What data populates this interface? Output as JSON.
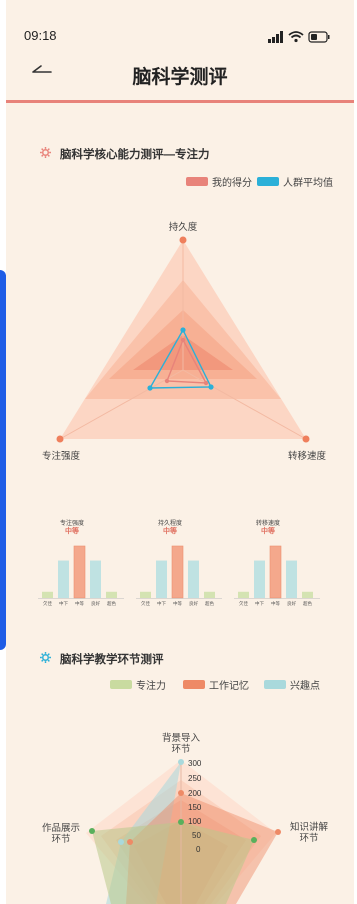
{
  "status": {
    "time": "09:18"
  },
  "nav": {
    "title": "脑科学测评"
  },
  "section1": {
    "title": "脑科学核心能力测评—专注力",
    "legend": [
      {
        "label": "我的得分",
        "color": "#e8837a"
      },
      {
        "label": "人群平均值",
        "color": "#2bb0d8"
      }
    ],
    "axes": [
      "持久度",
      "专注强度",
      "转移速度"
    ]
  },
  "mini_charts": [
    {
      "title": "专注强度",
      "level": "中等",
      "categories": [
        "欠佳",
        "中下",
        "中等",
        "良好",
        "超色"
      ],
      "values": [
        0.12,
        0.72,
        1.0,
        0.72,
        0.12
      ]
    },
    {
      "title": "持久程度",
      "level": "中等",
      "categories": [
        "欠佳",
        "中下",
        "中等",
        "良好",
        "超色"
      ],
      "values": [
        0.12,
        0.72,
        1.0,
        0.72,
        0.12
      ]
    },
    {
      "title": "转移速度",
      "level": "中等",
      "categories": [
        "欠佳",
        "中下",
        "中等",
        "良好",
        "超色"
      ],
      "values": [
        0.12,
        0.72,
        1.0,
        0.72,
        0.12
      ]
    }
  ],
  "section2": {
    "title": "脑科学教学环节测评",
    "legend": [
      {
        "label": "专注力",
        "color": "#c9dba0"
      },
      {
        "label": "工作记忆",
        "color": "#ee8a66"
      },
      {
        "label": "兴趣点",
        "color": "#a9d9dc"
      }
    ],
    "axes": [
      {
        "line1": "背景导入",
        "line2": "环节"
      },
      {
        "line1": "知识讲解",
        "line2": "环节"
      },
      {
        "line1": "作品展示",
        "line2": "环节"
      }
    ],
    "ticks": [
      "300",
      "250",
      "200",
      "150",
      "100",
      "50",
      "0"
    ]
  },
  "colors": {
    "accent": "#e8837a",
    "teal": "#2bb0d8",
    "bg": "#fbf1e6"
  }
}
